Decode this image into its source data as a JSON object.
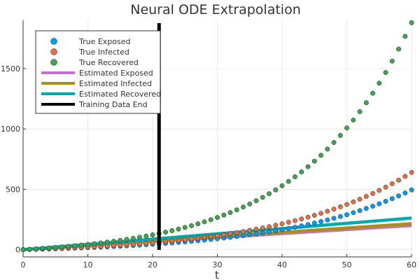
{
  "chart_data": {
    "type": "scatter",
    "title": "Neural ODE Extrapolation",
    "xlabel": "t",
    "ylabel": "",
    "xlim": [
      0,
      60
    ],
    "ylim": [
      -60,
      1900
    ],
    "xticks": [
      0,
      10,
      20,
      30,
      40,
      50,
      60
    ],
    "yticks": [
      0,
      500,
      1000,
      1500
    ],
    "grid": true,
    "legend_position": "top-left",
    "training_end_x": 21,
    "scatter_series": [
      {
        "name": "True Exposed",
        "color": "#009AFA",
        "growth": "exp",
        "y0": 0,
        "yEnd": 495,
        "k": 3.0
      },
      {
        "name": "True Infected",
        "color": "#E36F47",
        "growth": "exp",
        "y0": 0,
        "yEnd": 640,
        "k": 3.0
      },
      {
        "name": "True Recovered",
        "color": "#3EA44E",
        "growth": "exp",
        "y0": 0,
        "yEnd": 1880,
        "k": 3.6
      }
    ],
    "line_series": [
      {
        "name": "Estimated Exposed",
        "color": "#C271D2",
        "x": [
          0,
          60
        ],
        "y": [
          0,
          200
        ]
      },
      {
        "name": "Estimated Infected",
        "color": "#AC8D18",
        "x": [
          0,
          60
        ],
        "y": [
          0,
          215
        ]
      },
      {
        "name": "Estimated Recovered",
        "color": "#00A9AD",
        "x": [
          0,
          60
        ],
        "y": [
          0,
          262
        ]
      }
    ],
    "training_series": {
      "name": "Training Data End",
      "color": "#000000"
    }
  }
}
